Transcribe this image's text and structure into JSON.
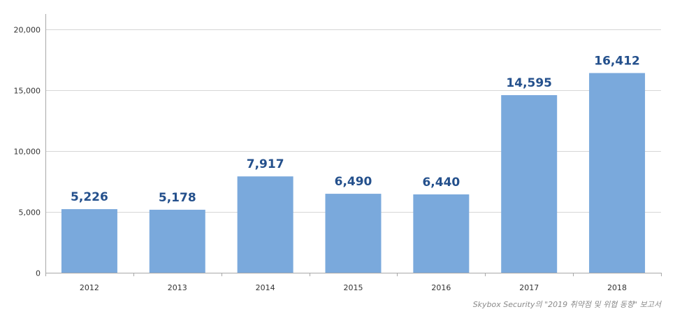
{
  "chart_data": {
    "type": "bar",
    "categories": [
      "2012",
      "2013",
      "2014",
      "2015",
      "2016",
      "2017",
      "2018"
    ],
    "values": [
      5226,
      5178,
      7917,
      6490,
      6440,
      14595,
      16412
    ],
    "data_labels": [
      "5,226",
      "5,178",
      "7,917",
      "6,490",
      "6,440",
      "14,595",
      "16,412"
    ],
    "y_ticks": [
      0,
      5000,
      10000,
      15000,
      20000
    ],
    "y_tick_labels": [
      "0",
      "5,000",
      "10,000",
      "15,000",
      "20,000"
    ],
    "ylim": [
      0,
      20000
    ],
    "grid": true,
    "title": "",
    "xlabel": "",
    "ylabel": ""
  },
  "source_note": "Skybox Security의 \"2019 취약점 및 위협 동향\" 보고서",
  "colors": {
    "bar": "#7aa9dc",
    "data_label": "#24508c",
    "grid": "#d6d6d6",
    "axis": "#a8a8a8"
  }
}
